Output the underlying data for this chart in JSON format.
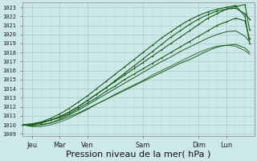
{
  "bg_color": "#cce8e8",
  "grid_color_major": "#aacccc",
  "grid_color_minor": "#bbdddd",
  "line_color": "#1a5c1a",
  "xlabel": "Pression niveau de la mer( hPa )",
  "xlabel_fontsize": 8,
  "ytick_labels": [
    1009,
    1010,
    1011,
    1012,
    1013,
    1014,
    1015,
    1016,
    1017,
    1018,
    1019,
    1020,
    1021,
    1022,
    1023
  ],
  "ylim": [
    1008.8,
    1023.5
  ],
  "xlim": [
    0,
    200
  ],
  "xtick_labels": [
    "Jeu",
    "Mar",
    "Ven",
    "Sam",
    "Dim",
    "Lun"
  ],
  "xtick_positions": [
    8,
    32,
    56,
    104,
    152,
    176
  ],
  "series": [
    {
      "x": [
        0,
        8,
        16,
        24,
        32,
        40,
        48,
        56,
        64,
        72,
        80,
        88,
        96,
        104,
        112,
        120,
        128,
        136,
        144,
        152,
        160,
        168,
        176,
        184,
        192,
        196
      ],
      "y": [
        1010.0,
        1010.1,
        1010.3,
        1010.5,
        1010.8,
        1011.2,
        1011.8,
        1012.4,
        1013.0,
        1013.7,
        1014.3,
        1015.0,
        1015.6,
        1016.2,
        1016.8,
        1017.4,
        1018.0,
        1018.6,
        1019.2,
        1019.8,
        1020.4,
        1021.0,
        1021.4,
        1021.8,
        1021.5,
        1019.5
      ],
      "marker": true,
      "lw": 0.8
    },
    {
      "x": [
        0,
        8,
        16,
        24,
        32,
        40,
        48,
        56,
        64,
        72,
        80,
        88,
        96,
        104,
        112,
        120,
        128,
        136,
        144,
        152,
        160,
        168,
        176,
        184,
        192,
        196
      ],
      "y": [
        1010.0,
        1010.0,
        1010.2,
        1010.5,
        1010.9,
        1011.4,
        1012.0,
        1012.7,
        1013.4,
        1014.1,
        1014.8,
        1015.5,
        1016.2,
        1016.9,
        1017.6,
        1018.3,
        1019.0,
        1019.7,
        1020.4,
        1021.1,
        1021.8,
        1022.3,
        1022.8,
        1023.1,
        1023.3,
        1020.5
      ],
      "marker": true,
      "lw": 0.8
    },
    {
      "x": [
        0,
        8,
        16,
        24,
        32,
        40,
        48,
        56,
        64,
        72,
        80,
        88,
        96,
        104,
        112,
        120,
        128,
        136,
        144,
        152,
        160,
        168,
        176,
        184,
        192,
        196
      ],
      "y": [
        1010.0,
        1009.9,
        1010.0,
        1010.2,
        1010.5,
        1010.9,
        1011.3,
        1011.8,
        1012.3,
        1012.8,
        1013.3,
        1013.8,
        1014.3,
        1014.8,
        1015.3,
        1015.8,
        1016.3,
        1016.8,
        1017.2,
        1017.7,
        1018.2,
        1018.6,
        1018.8,
        1018.9,
        1018.5,
        1018.0
      ],
      "marker": false,
      "lw": 0.7
    },
    {
      "x": [
        0,
        8,
        16,
        24,
        32,
        40,
        48,
        56,
        64,
        72,
        80,
        88,
        96,
        104,
        112,
        120,
        128,
        136,
        144,
        152,
        160,
        168,
        176,
        184,
        192,
        196
      ],
      "y": [
        1010.0,
        1009.9,
        1010.0,
        1010.2,
        1010.6,
        1011.1,
        1011.6,
        1012.2,
        1012.8,
        1013.4,
        1014.0,
        1014.6,
        1015.2,
        1015.8,
        1016.4,
        1017.0,
        1017.5,
        1018.1,
        1018.6,
        1019.1,
        1019.6,
        1020.0,
        1020.3,
        1020.4,
        1019.8,
        1019.2
      ],
      "marker": false,
      "lw": 0.7
    },
    {
      "x": [
        0,
        8,
        16,
        24,
        32,
        40,
        48,
        56,
        64,
        72,
        80,
        88,
        96,
        104,
        112,
        120,
        128,
        136,
        144,
        152,
        160,
        168,
        176,
        184,
        192,
        196
      ],
      "y": [
        1010.0,
        1009.8,
        1009.8,
        1010.0,
        1010.3,
        1010.7,
        1011.2,
        1011.7,
        1012.3,
        1012.8,
        1013.4,
        1013.9,
        1014.4,
        1014.9,
        1015.5,
        1016.0,
        1016.5,
        1017.0,
        1017.5,
        1018.0,
        1018.4,
        1018.7,
        1018.8,
        1018.7,
        1018.2,
        1017.8
      ],
      "marker": false,
      "lw": 0.6
    },
    {
      "x": [
        0,
        8,
        16,
        24,
        32,
        40,
        48,
        56,
        64,
        72,
        80,
        88,
        96,
        104,
        112,
        120,
        128,
        136,
        144,
        152,
        160,
        168,
        176,
        184,
        192,
        196
      ],
      "y": [
        1010.0,
        1010.0,
        1010.2,
        1010.5,
        1010.9,
        1011.4,
        1012.0,
        1012.7,
        1013.4,
        1014.1,
        1014.9,
        1015.7,
        1016.5,
        1017.3,
        1018.1,
        1018.9,
        1019.7,
        1020.4,
        1021.1,
        1021.7,
        1022.2,
        1022.6,
        1022.8,
        1022.9,
        1022.3,
        1021.7
      ],
      "marker": true,
      "lw": 0.8
    },
    {
      "x": [
        0,
        8,
        16,
        24,
        32,
        40,
        48,
        56,
        64,
        72,
        80,
        88,
        96,
        104,
        112,
        120,
        128,
        136,
        144,
        152,
        160,
        168,
        176,
        184,
        192,
        196
      ],
      "y": [
        1010.0,
        1010.1,
        1010.3,
        1010.7,
        1011.2,
        1011.8,
        1012.5,
        1013.2,
        1014.0,
        1014.8,
        1015.6,
        1016.4,
        1017.2,
        1018.0,
        1018.8,
        1019.6,
        1020.3,
        1021.0,
        1021.6,
        1022.1,
        1022.5,
        1022.8,
        1023.0,
        1023.2,
        1022.0,
        1019.0
      ],
      "marker": true,
      "lw": 0.8
    }
  ]
}
